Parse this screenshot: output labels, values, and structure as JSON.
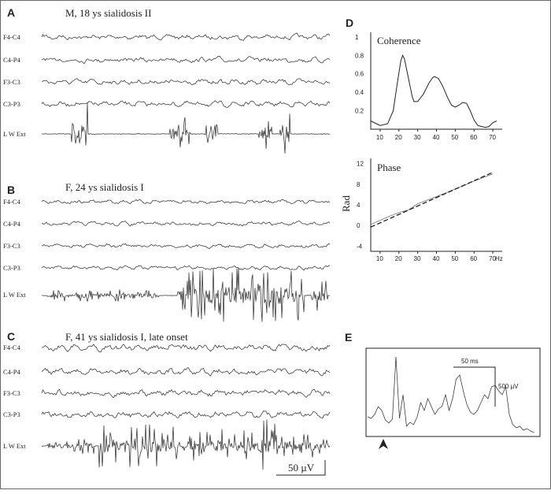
{
  "panels": {
    "A": {
      "label": "A",
      "title": "M, 18 ys sialidosis II"
    },
    "B": {
      "label": "B",
      "title": "F, 24 ys sialidosis I"
    },
    "C": {
      "label": "C",
      "title": "F, 41 ys sialidosis I, late onset"
    },
    "D": {
      "label": "D"
    },
    "E": {
      "label": "E",
      "time_scale": "50 ms",
      "amp_scale": "500 µV"
    }
  },
  "channels": [
    "F4-C4",
    "C4-P4",
    "F3-C3",
    "C3-P3",
    "L W Ext"
  ],
  "scale_bar_label": "50 µV",
  "chart_data": [
    {
      "type": "line",
      "title": "Coherence",
      "x_ticks": [
        10,
        20,
        30,
        40,
        50,
        60,
        70
      ],
      "y_ticks": [
        0.2,
        0.4,
        0.6,
        0.8,
        1
      ],
      "xlim": [
        5,
        75
      ],
      "ylim": [
        0,
        1.05
      ],
      "x": [
        5,
        8,
        10,
        14,
        17,
        19,
        21,
        22,
        23,
        25,
        27,
        28,
        30,
        33,
        36,
        38,
        39,
        41,
        43,
        46,
        48,
        50,
        52,
        54,
        56,
        58,
        60,
        62,
        64,
        66,
        68,
        70,
        72
      ],
      "y": [
        0.09,
        0.06,
        0.04,
        0.06,
        0.2,
        0.48,
        0.74,
        0.8,
        0.76,
        0.56,
        0.36,
        0.3,
        0.3,
        0.38,
        0.5,
        0.56,
        0.57,
        0.55,
        0.48,
        0.34,
        0.26,
        0.24,
        0.26,
        0.29,
        0.28,
        0.2,
        0.1,
        0.04,
        0.03,
        0.02,
        0.03,
        0.07,
        0.09
      ]
    },
    {
      "type": "line",
      "title": "Phase",
      "ylabel": "Rad",
      "xlabel": "Hz",
      "x_ticks": [
        10,
        20,
        30,
        40,
        50,
        60,
        70
      ],
      "y_ticks": [
        -4,
        0,
        4,
        8,
        12
      ],
      "xlim": [
        5,
        75
      ],
      "ylim": [
        -5,
        13
      ],
      "series": [
        {
          "x": [
            5,
            10,
            15,
            20,
            22,
            25,
            30,
            35,
            40,
            45,
            50,
            55,
            60,
            65,
            70
          ],
          "y": [
            0.2,
            1.0,
            1.8,
            2.5,
            2.7,
            3.0,
            4.2,
            4.9,
            5.6,
            6.3,
            7.1,
            7.8,
            8.6,
            9.3,
            10.0
          ]
        },
        {
          "x": [
            5,
            70
          ],
          "y": [
            -0.3,
            10.3
          ],
          "dashed": true
        }
      ]
    }
  ]
}
